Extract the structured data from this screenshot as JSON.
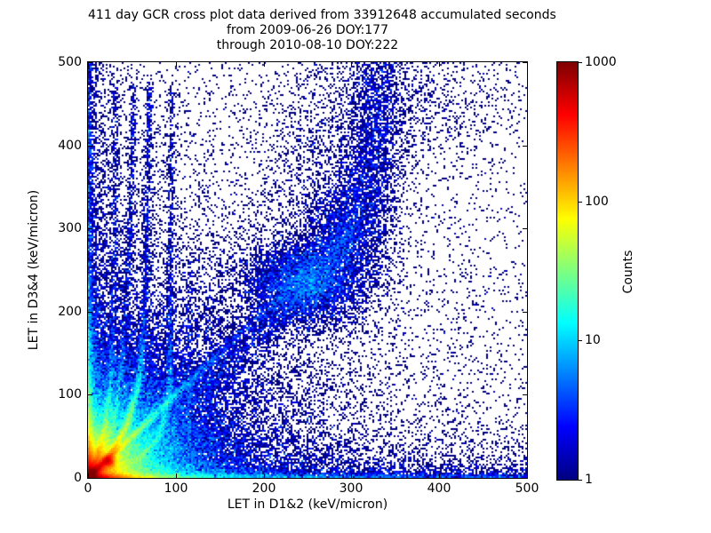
{
  "title": {
    "line1": "411 day GCR cross plot data derived from 33912648 accumulated seconds",
    "line2": "from 2009-06-26 DOY:177",
    "line3": "through 2010-08-10 DOY:222"
  },
  "axes": {
    "xlabel": "LET in D1&2 (keV/micron)",
    "ylabel": "LET in D3&4 (keV/micron)"
  },
  "colorbar": {
    "label": "Counts",
    "tick_labels": [
      "1000",
      "100",
      "10",
      "1"
    ]
  },
  "stats": {
    "duration_days": 411,
    "accumulated_seconds": 33912648,
    "start_date": "2009-06-26",
    "start_doy": 177,
    "end_date": "2010-08-10",
    "end_doy": 222
  },
  "chart_data": {
    "type": "heatmap",
    "title": "411 day GCR cross plot data derived from 33912648 accumulated seconds\nfrom 2009-06-26 DOY:177\nthrough 2010-08-10 DOY:222",
    "xlabel": "LET in D1&2 (keV/micron)",
    "ylabel": "LET in D3&4 (keV/micron)",
    "xlim": [
      0,
      500
    ],
    "ylim": [
      0,
      500
    ],
    "xticks": [
      0,
      100,
      200,
      300,
      400,
      500
    ],
    "yticks": [
      0,
      100,
      200,
      300,
      400,
      500
    ],
    "grid": false,
    "point_color_min": "#000083",
    "colorbar": {
      "label": "Counts",
      "scale": "log",
      "min": 1,
      "max": 1000,
      "ticks": [
        1000,
        100,
        10,
        1
      ],
      "colormap": "jet"
    },
    "seed": 20090626,
    "features": [
      {
        "type": "radial",
        "name": "origin-hotspot",
        "x": 0,
        "y": 0,
        "terms": [
          [
            900,
            7
          ],
          [
            250,
            18
          ],
          [
            60,
            40
          ]
        ]
      },
      {
        "type": "hband",
        "name": "bottom-band-core",
        "sy": 2.8,
        "floor": 2.2,
        "terms": [
          [
            700,
            16
          ],
          [
            80,
            45
          ],
          [
            8,
            180
          ]
        ]
      },
      {
        "type": "hband",
        "name": "bottom-band-fringe",
        "sy": 9,
        "floor": 0.3,
        "terms": [
          [
            25,
            60
          ],
          [
            2,
            280
          ]
        ]
      },
      {
        "type": "hband",
        "name": "bottom-wedge",
        "sy": 33,
        "floor": 0,
        "terms": [
          [
            0.9,
            400
          ]
        ]
      },
      {
        "type": "vband",
        "name": "left-band-core",
        "sx": 3,
        "floor": 1.8,
        "terms": [
          [
            500,
            15
          ],
          [
            80,
            50
          ],
          [
            6,
            150
          ]
        ]
      },
      {
        "type": "vband",
        "name": "left-band-fringe",
        "sx": 7,
        "floor": 0.35,
        "terms": [
          [
            12,
            60
          ],
          [
            1.2,
            250
          ]
        ]
      },
      {
        "type": "vband",
        "name": "left-wedge",
        "sx": 30,
        "floor": 0,
        "terms": [
          [
            0.8,
            400
          ]
        ]
      },
      {
        "type": "ray",
        "name": "main-diagonal-streak",
        "slope": 1.0,
        "sigma": 2.5,
        "terms": [
          [
            650,
            13
          ],
          [
            110,
            40
          ],
          [
            18,
            85
          ]
        ]
      },
      {
        "type": "blob",
        "name": "diagonal-knot",
        "x": 23,
        "y": 20,
        "sx": 4,
        "sy": 4,
        "amp": 350
      },
      {
        "type": "ray",
        "name": "sub-diagonal-streak",
        "slope": 0.72,
        "sigma": 2.0,
        "terms": [
          [
            45,
            28
          ]
        ]
      },
      {
        "type": "ray",
        "name": "sub-diagonal-streak-2",
        "slope": 0.5,
        "sigma": 2.0,
        "terms": [
          [
            22,
            22
          ]
        ]
      },
      {
        "type": "track",
        "name": "stopping-track-x70",
        "pts": [
          [
            0,
            0
          ],
          [
            25,
            28
          ],
          [
            44,
            62
          ],
          [
            58,
            115
          ],
          [
            66,
            220
          ],
          [
            70,
            470
          ]
        ],
        "sigma": 2.4,
        "amp0": 200,
        "decay": 40,
        "floor": 1.3
      },
      {
        "type": "track",
        "name": "stopping-track-x52",
        "pts": [
          [
            0,
            0
          ],
          [
            15,
            28
          ],
          [
            28,
            64
          ],
          [
            39,
            135
          ],
          [
            48,
            290
          ],
          [
            52,
            470
          ]
        ],
        "sigma": 2.2,
        "amp0": 60,
        "decay": 35,
        "floor": 1.0
      },
      {
        "type": "track",
        "name": "stopping-track-x31",
        "pts": [
          [
            0,
            0
          ],
          [
            10,
            25
          ],
          [
            20,
            62
          ],
          [
            27,
            130
          ],
          [
            31,
            300
          ],
          [
            31,
            470
          ]
        ],
        "sigma": 2.1,
        "amp0": 150,
        "decay": 33,
        "floor": 0.9
      },
      {
        "type": "track",
        "name": "stopping-track-x96",
        "pts": [
          [
            55,
            20
          ],
          [
            82,
            50
          ],
          [
            93,
            105
          ],
          [
            96,
            470
          ]
        ],
        "sigma": 2.2,
        "amp0": 12,
        "decay": 80,
        "floor": 0.8
      },
      {
        "type": "track",
        "name": "faint-column-x115",
        "pts": [
          [
            115,
            20
          ],
          [
            115,
            260
          ]
        ],
        "sigma": 2.2,
        "amp0": 0.55,
        "decay": 9999,
        "floor": 0
      },
      {
        "type": "track",
        "name": "faint-column-x140",
        "pts": [
          [
            140,
            20
          ],
          [
            140,
            230
          ]
        ],
        "sigma": 2.2,
        "amp0": 0.45,
        "decay": 9999,
        "floor": 0
      },
      {
        "type": "track",
        "name": "faint-column-x165",
        "pts": [
          [
            165,
            15
          ],
          [
            165,
            200
          ]
        ],
        "sigma": 2.2,
        "amp0": 0.4,
        "decay": 9999,
        "floor": 0
      },
      {
        "type": "track",
        "name": "coincidence-band",
        "pts": [
          [
            75,
            65
          ],
          [
            150,
            135
          ],
          [
            245,
            228
          ],
          [
            292,
            284
          ]
        ],
        "sigma": 12,
        "amp0": 1.2,
        "decay": 9999,
        "floor": 0
      },
      {
        "type": "track",
        "name": "coincidence-band-upper",
        "pts": [
          [
            292,
            284
          ],
          [
            315,
            350
          ],
          [
            330,
            445
          ],
          [
            334,
            500
          ]
        ],
        "sigma": 16,
        "amp0": 0.42,
        "decay": 9999,
        "floor": 0
      },
      {
        "type": "blob",
        "name": "band-knot",
        "x": 248,
        "y": 235,
        "sx": 36,
        "sy": 26,
        "amp": 4.0
      },
      {
        "type": "blob",
        "name": "band-knot-2",
        "x": 295,
        "y": 300,
        "sx": 26,
        "sy": 34,
        "amp": 1.6
      },
      {
        "type": "blob",
        "name": "upper-column",
        "x": 326,
        "y": 435,
        "sx": 17,
        "sy": 70,
        "amp": 0.55
      },
      {
        "type": "blob",
        "name": "upper-column-2",
        "x": 318,
        "y": 365,
        "sx": 20,
        "sy": 45,
        "amp": 0.55
      },
      {
        "type": "blob",
        "name": "upper-cloud",
        "x": 355,
        "y": 455,
        "sx": 65,
        "sy": 55,
        "amp": 0.28
      },
      {
        "type": "blob",
        "name": "mid-column",
        "x": 250,
        "y": 370,
        "sx": 28,
        "sy": 85,
        "amp": 0.22
      },
      {
        "type": "radial",
        "name": "scatter-falloff",
        "x": 0,
        "y": 0,
        "terms": [
          [
            2.4,
            105
          ],
          [
            0.28,
            260
          ]
        ]
      },
      {
        "type": "const",
        "name": "background-speckle",
        "amp": 0.018
      }
    ]
  }
}
